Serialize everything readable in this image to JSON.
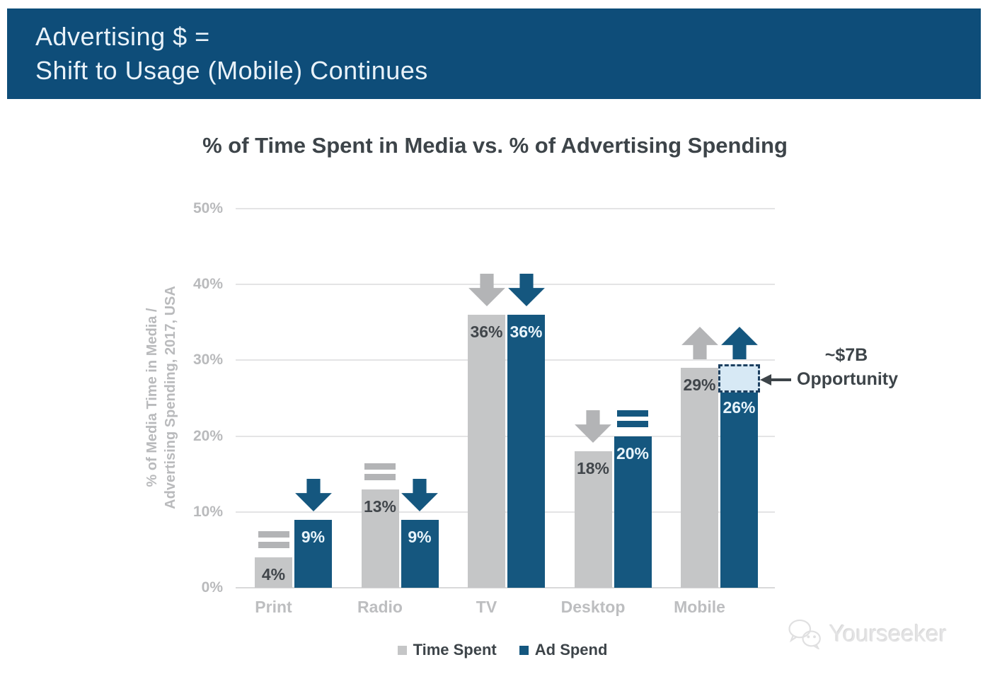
{
  "header": {
    "line1": "Advertising $ =",
    "line2": "Shift to Usage (Mobile) Continues",
    "bg_color": "#0e4d79"
  },
  "chart_data": {
    "type": "bar",
    "title": "% of Time Spent in Media vs. % of Advertising Spending",
    "ylabel_line1": "% of Media Time in Media /",
    "ylabel_line2": "Advertising Spending, 2017, USA",
    "categories": [
      "Print",
      "Radio",
      "TV",
      "Desktop",
      "Mobile"
    ],
    "series": [
      {
        "name": "Time Spent",
        "color": "#c5c6c7",
        "label_color": "#41464b",
        "trend_color": "#b3b4b6",
        "values": [
          4,
          13,
          36,
          18,
          29
        ],
        "trends": [
          "flat",
          "flat",
          "down",
          "down",
          "up"
        ]
      },
      {
        "name": "Ad Spend",
        "color": "#15577f",
        "label_color": "#e8f4fb",
        "trend_color": "#15577f",
        "values": [
          9,
          9,
          36,
          20,
          26
        ],
        "trends": [
          "down",
          "down",
          "down",
          "flat",
          "up"
        ]
      }
    ],
    "yticks": [
      "0%",
      "10%",
      "20%",
      "30%",
      "40%",
      "50%"
    ],
    "ylim": [
      0,
      50
    ],
    "grid": true,
    "legend_position": "bottom",
    "annotation": {
      "line1": "~$7B",
      "line2": "Opportunity",
      "target_category": "Mobile",
      "target_series": "Ad Spend",
      "box_from": 26,
      "box_to": 29,
      "box_fill": "#d7e9f5",
      "box_border": "#1d4060"
    }
  },
  "watermark": {
    "text": "Yourseeker"
  }
}
